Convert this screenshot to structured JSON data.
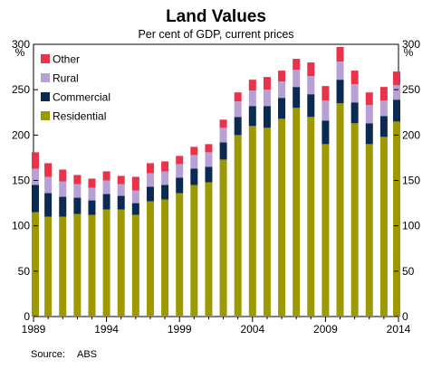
{
  "chart_data": {
    "type": "bar",
    "stacked": true,
    "title": "Land Values",
    "subtitle": "Per cent of GDP, current prices",
    "y_unit": "%",
    "source_label": "Source:",
    "source_value": "ABS",
    "ylim": [
      0,
      300
    ],
    "yticks": [
      0,
      50,
      100,
      150,
      200,
      250,
      300
    ],
    "xticks": [
      "1989",
      "1994",
      "1999",
      "2004",
      "2009",
      "2014"
    ],
    "grid": false,
    "legend_position": "top-left",
    "categories": [
      "1989",
      "1990",
      "1991",
      "1992",
      "1993",
      "1994",
      "1995",
      "1996",
      "1997",
      "1998",
      "1999",
      "2000",
      "2001",
      "2002",
      "2003",
      "2004",
      "2005",
      "2006",
      "2007",
      "2008",
      "2009",
      "2010",
      "2011",
      "2012",
      "2013",
      "2014"
    ],
    "series": [
      {
        "name": "Residential",
        "color": "#9c9a00",
        "values": [
          115,
          110,
          110,
          113,
          112,
          118,
          118,
          112,
          127,
          129,
          136,
          145,
          148,
          173,
          200,
          210,
          208,
          218,
          230,
          220,
          190,
          235,
          213,
          190,
          198,
          215
        ]
      },
      {
        "name": "Commercial",
        "color": "#0b2a52",
        "values": [
          30,
          26,
          22,
          18,
          16,
          17,
          15,
          13,
          16,
          16,
          17,
          18,
          17,
          19,
          20,
          22,
          24,
          23,
          23,
          25,
          26,
          26,
          23,
          23,
          23,
          24
        ]
      },
      {
        "name": "Rural",
        "color": "#b7a0d3",
        "values": [
          18,
          18,
          17,
          15,
          14,
          15,
          13,
          14,
          15,
          15,
          15,
          15,
          16,
          16,
          17,
          17,
          18,
          18,
          19,
          20,
          22,
          20,
          20,
          20,
          17,
          16
        ]
      },
      {
        "name": "Other",
        "color": "#e8334a",
        "values": [
          18,
          15,
          13,
          10,
          10,
          10,
          9,
          15,
          11,
          11,
          9,
          9,
          9,
          9,
          10,
          12,
          14,
          12,
          12,
          15,
          16,
          16,
          15,
          14,
          15,
          15
        ]
      }
    ]
  }
}
